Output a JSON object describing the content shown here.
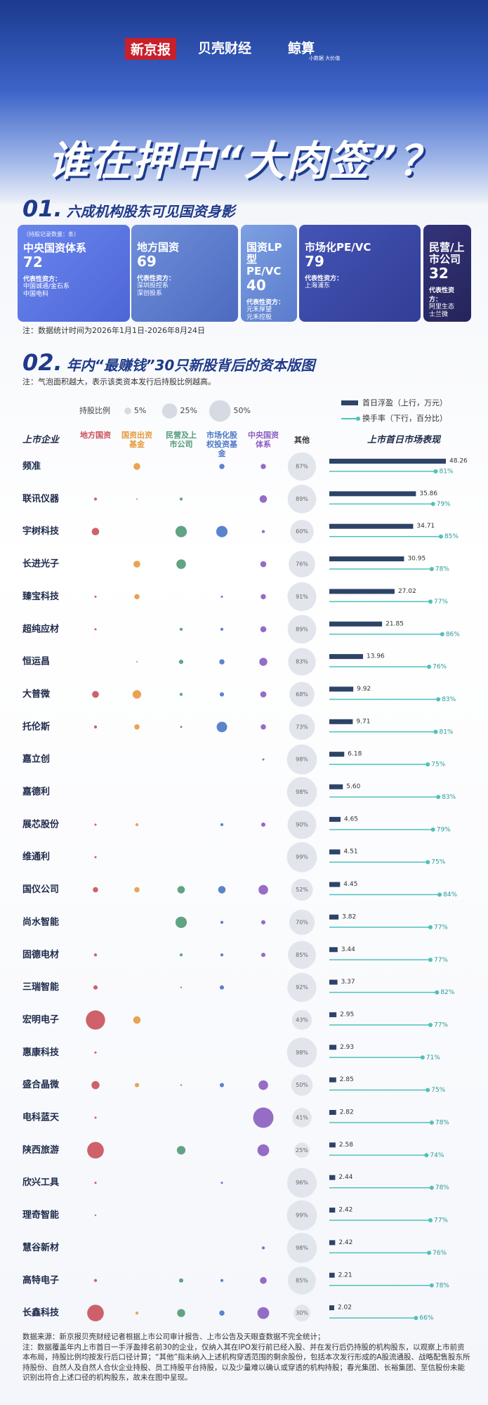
{
  "header": {
    "logos": [
      "新京报",
      "贝壳财经",
      "鲸算"
    ],
    "logo_tagline": "小数据 大价值",
    "title": "谁在押中“大肉签”？"
  },
  "section1": {
    "number": "01.",
    "title": "六成机构股东可见国资身影",
    "unit_note": "（持股记录数量：条）",
    "cards": [
      {
        "name": "中央国资体系",
        "count": 72,
        "rep_label": "代表性资方：",
        "reps": [
          "中国诚通/金石系",
          "中国电科"
        ]
      },
      {
        "name": "地方国资",
        "count": 69,
        "rep_label": "代表性资方：",
        "reps": [
          "深圳投控系",
          "深创投系"
        ]
      },
      {
        "name": "国资LP型PE/VC",
        "count": 40,
        "rep_label": "代表性资方：",
        "reps": [
          "元禾厚望",
          "元禾控股"
        ]
      },
      {
        "name": "市场化PE/VC",
        "count": 79,
        "rep_label": "代表性资方：",
        "reps": [
          "上海浦东"
        ]
      },
      {
        "name": "民营/上市公司",
        "count": 32,
        "rep_label": "代表性资方：",
        "reps": [
          "阿里生态",
          "士兰微"
        ]
      }
    ],
    "note": "注：数据统计时间为2026年1月1日-2026年8月24日"
  },
  "chart_data": {
    "type": "bubble-table",
    "number": "02.",
    "title": "年内“最赚钱”30只新股背后的资本版图",
    "note": "注：气泡面积越大，表示该类资本发行后持股比例越高。",
    "size_legend_title": "持股比例",
    "size_legend": [
      {
        "value": 5,
        "label": "5%"
      },
      {
        "value": 25,
        "label": "25%"
      },
      {
        "value": 50,
        "label": "50%"
      }
    ],
    "company_header": "上市企业",
    "performance_header": "上市首日市场表现",
    "companies": [
      "频准",
      "联讯仪器",
      "宇树科技",
      "长进光子",
      "臻宝科技",
      "超纯应材",
      "恒运昌",
      "大普微",
      "托伦斯",
      "嘉立创",
      "嘉德利",
      "展芯股份",
      "维通利",
      "国仪公司",
      "尚水智能",
      "固德电材",
      "三瑞智能",
      "宏明电子",
      "惠康科技",
      "盛合晶微",
      "电科蓝天",
      "陕西旅游",
      "欣兴工具",
      "理奇智能",
      "慧谷新材",
      "高特电子",
      "长鑫科技"
    ],
    "series": [
      {
        "name": "地方国资",
        "color": "#c9505a",
        "values": [
          null,
          1,
          6,
          null,
          0.5,
          0.5,
          null,
          5,
          1,
          null,
          null,
          0.5,
          0.5,
          3,
          null,
          1,
          2,
          40,
          0.5,
          7,
          0.5,
          30,
          0.5,
          0.3,
          null,
          1,
          30
        ]
      },
      {
        "name": "国资出资基金",
        "color": "#e59a3f",
        "values": [
          5,
          0.3,
          null,
          5,
          3,
          null,
          0.3,
          8,
          3,
          null,
          null,
          1,
          null,
          3,
          null,
          null,
          null,
          6,
          null,
          2,
          null,
          null,
          null,
          null,
          null,
          null,
          1
        ]
      },
      {
        "name": "民营及上市公司",
        "color": "#4f9a76",
        "values": [
          null,
          1,
          14,
          10,
          null,
          1,
          2,
          1,
          0.5,
          null,
          null,
          null,
          null,
          6,
          14,
          1,
          0.3,
          null,
          null,
          0.3,
          null,
          8,
          null,
          null,
          null,
          2,
          7
        ]
      },
      {
        "name": "市场化股权投资基金",
        "color": "#4a76c7",
        "values": [
          3,
          null,
          14,
          null,
          0.5,
          1,
          3,
          2,
          12,
          null,
          null,
          1,
          null,
          6,
          1,
          1,
          2,
          null,
          null,
          2,
          null,
          null,
          0.5,
          null,
          null,
          1,
          3
        ]
      },
      {
        "name": "中央国资体系",
        "color": "#8a5cc0",
        "values": [
          3,
          6,
          1,
          4,
          3,
          4,
          7,
          4,
          3,
          0.5,
          null,
          2,
          null,
          10,
          2,
          2,
          null,
          null,
          null,
          10,
          45,
          15,
          null,
          null,
          1,
          5,
          15
        ]
      },
      {
        "name": "其他",
        "color": "#dfe2ea",
        "values": [
          87,
          89,
          60,
          76,
          91,
          89,
          83,
          68,
          73,
          98,
          98,
          90,
          99,
          52,
          70,
          85,
          92,
          43,
          98,
          50,
          41,
          25,
          96,
          99,
          98,
          85,
          30
        ],
        "value_labels": [
          "87%",
          "89%",
          "60%",
          "76%",
          "91%",
          "89%",
          "83%",
          "68%",
          "73%",
          "98%",
          "98%",
          "90%",
          "99%",
          "52%",
          "70%",
          "85%",
          "92%",
          "43%",
          "98%",
          "50%",
          "41%",
          "25%",
          "96%",
          "99%",
          "98%",
          "85%",
          "30%"
        ]
      }
    ],
    "float": {
      "name": "首日浮盈（上行，万元）",
      "color": "#2d4468",
      "xlim": [
        0,
        50
      ],
      "values": [
        48.26,
        35.86,
        34.71,
        30.95,
        27.02,
        21.85,
        13.96,
        9.92,
        9.71,
        6.18,
        5.6,
        4.65,
        4.51,
        4.45,
        3.82,
        3.44,
        3.37,
        2.95,
        2.93,
        2.85,
        2.82,
        2.58,
        2.44,
        2.42,
        2.42,
        2.21,
        2.02
      ],
      "value_labels": [
        "48.26",
        "35.86",
        "34.71",
        "30.95",
        "27.02",
        "21.85",
        "13.96",
        "9.92",
        "9.71",
        "6.18",
        "5.60",
        "4.65",
        "4.51",
        "4.45",
        "3.82",
        "3.44",
        "3.37",
        "2.95",
        "2.93",
        "2.85",
        "2.82",
        "2.58",
        "2.44",
        "2.42",
        "2.42",
        "2.21",
        "2.02"
      ]
    },
    "turnover": {
      "name": "换手率（下行，百分比）",
      "color": "#4fc1bb",
      "xlim": [
        0,
        100
      ],
      "values": [
        81,
        79,
        85,
        78,
        77,
        86,
        76,
        83,
        81,
        75,
        83,
        79,
        75,
        84,
        77,
        77,
        82,
        77,
        71,
        75,
        78,
        74,
        78,
        77,
        76,
        78,
        66
      ],
      "value_labels": [
        "81%",
        "79%",
        "85%",
        "78%",
        "77%",
        "86%",
        "76%",
        "83%",
        "81%",
        "75%",
        "83%",
        "79%",
        "75%",
        "84%",
        "77%",
        "77%",
        "82%",
        "77%",
        "71%",
        "75%",
        "78%",
        "74%",
        "78%",
        "77%",
        "76%",
        "78%",
        "66%"
      ]
    }
  },
  "footer": {
    "source": "数据来源：新京报贝壳财经记者根据上市公司审计报告、上市公告及天眼查数据不完全统计；",
    "note": "注：数据覆盖年内上市首日一手浮盈排名前30的企业，仅纳入其在IPO发行前已经入股、并在发行后仍持股的机构股东，以观察上市前资本布局，持股比例均按发行后口径计算；“其他”指未纳入上述机构穿透范围的剩余股份，包括本次发行形成的A股流通股、战略配售股东所持股份、自然人及自然人合伙企业持股、员工持股平台持股，以及少量难以确认或穿透的机构持股；春光集团、长裕集团、至信股份未能识别出符合上述口径的机构股东，故未在图中呈现。"
  }
}
